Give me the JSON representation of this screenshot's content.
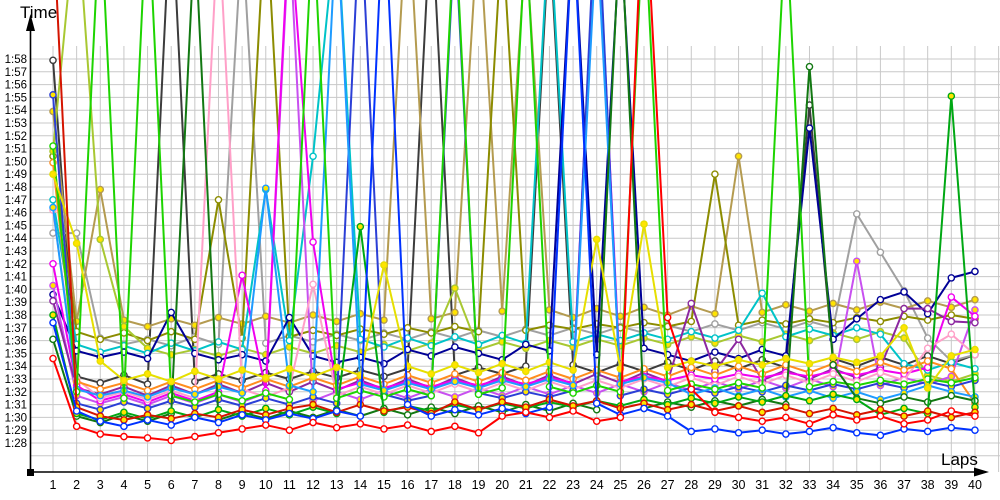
{
  "chart_data": {
    "type": "line",
    "xlabel": "Laps",
    "ylabel": "Time",
    "xlim": [
      1,
      40
    ],
    "ylim_labels": [
      "1:28",
      "1:58"
    ],
    "grid": {
      "show": true,
      "color": "#c8c8c8"
    },
    "axis_color": "#000000",
    "marker_yellow": "#ffe400",
    "x_ticks": [
      1,
      2,
      3,
      4,
      5,
      6,
      7,
      8,
      9,
      10,
      11,
      12,
      13,
      14,
      15,
      16,
      17,
      18,
      19,
      20,
      21,
      22,
      23,
      24,
      25,
      26,
      27,
      28,
      29,
      30,
      31,
      32,
      33,
      34,
      35,
      36,
      37,
      38,
      39,
      40
    ],
    "y_tick_labels": [
      "1:28",
      "1:29",
      "1:30",
      "1:31",
      "1:32",
      "1:33",
      "1:34",
      "1:35",
      "1:36",
      "1:37",
      "1:38",
      "1:39",
      "1:40",
      "1:41",
      "1:42",
      "1:43",
      "1:44",
      "1:45",
      "1:46",
      "1:47",
      "1:48",
      "1:49",
      "1:50",
      "1:51",
      "1:52",
      "1:53",
      "1:54",
      "1:55",
      "1:56",
      "1:57",
      "1:58"
    ],
    "y_base_seconds": 88,
    "note": "values are lap times in seconds (88 = 1:28); values above 120 run off the top of the plot",
    "series": [
      {
        "name": "dark-gray",
        "color": "#3c3c3c",
        "marker": "open",
        "values": [
          117.9,
          93.2,
          92.7,
          93.3,
          92.6,
          131.0,
          92.8,
          93.4,
          92.9,
          93.5,
          93.0,
          93.6,
          93.1,
          93.7,
          93.2,
          93.8,
          130.0,
          93.3,
          93.9,
          93.4,
          94.0,
          128.0,
          94.1,
          93.5,
          94.2,
          93.6,
          94.3,
          93.7,
          94.4,
          93.8,
          94.5,
          93.9,
          114.4,
          94.6,
          94.0,
          94.7,
          94.1,
          94.8,
          94.2,
          94.9
        ]
      },
      {
        "name": "gray",
        "color": "#a0a0a0",
        "marker": "open",
        "values": [
          104.4,
          104.4,
          96.2,
          95.7,
          96.1,
          95.6,
          96.3,
          95.7,
          128.0,
          95.8,
          96.4,
          95.9,
          96.5,
          96.0,
          96.6,
          96.1,
          96.7,
          96.2,
          96.8,
          96.3,
          96.9,
          96.4,
          97.0,
          96.5,
          97.1,
          96.6,
          97.2,
          96.7,
          97.3,
          96.8,
          97.4,
          96.9,
          97.5,
          97.0,
          105.9,
          102.9,
          99.9,
          96.2,
          94.4,
          94.9
        ]
      },
      {
        "name": "khaki",
        "color": "#b49b50",
        "marker": "yellow",
        "values": [
          113.9,
          97.5,
          107.8,
          97.6,
          97.1,
          97.7,
          97.2,
          97.8,
          97.3,
          97.9,
          97.4,
          98.0,
          97.5,
          98.1,
          97.6,
          131.0,
          97.7,
          98.2,
          129.0,
          98.3,
          127.0,
          98.4,
          97.8,
          98.5,
          97.9,
          98.6,
          98.0,
          98.7,
          98.1,
          110.4,
          98.2,
          98.8,
          98.3,
          98.9,
          98.4,
          99.0,
          98.5,
          99.1,
          98.6,
          99.2
        ]
      },
      {
        "name": "olive",
        "color": "#8c8c00",
        "marker": "open",
        "values": [
          110.4,
          96.7,
          96.1,
          96.6,
          96.0,
          96.7,
          96.1,
          107.0,
          96.2,
          130.0,
          96.3,
          96.8,
          96.4,
          96.9,
          96.5,
          97.0,
          96.6,
          97.1,
          96.7,
          128.0,
          96.8,
          97.2,
          96.9,
          97.3,
          97.0,
          97.4,
          97.1,
          97.5,
          109.0,
          97.2,
          97.6,
          97.3,
          97.7,
          97.4,
          97.8,
          97.5,
          97.9,
          97.6,
          98.0,
          97.7
        ]
      },
      {
        "name": "yellow-green",
        "color": "#a8c832",
        "marker": "yellow",
        "values": [
          110.8,
          130.0,
          103.9,
          97.1,
          95.4,
          94.9,
          95.3,
          94.8,
          95.4,
          94.9,
          95.5,
          95.0,
          95.6,
          95.1,
          95.7,
          95.2,
          95.8,
          100.1,
          95.3,
          95.9,
          95.4,
          96.0,
          95.5,
          96.1,
          95.6,
          96.2,
          95.7,
          96.3,
          95.8,
          96.4,
          95.9,
          96.5,
          96.0,
          96.6,
          96.1,
          96.7,
          96.2,
          93.3,
          92.8,
          93.4
        ]
      },
      {
        "name": "cyan",
        "color": "#00c3c8",
        "marker": "open",
        "values": [
          107.0,
          95.7,
          95.1,
          95.6,
          95.0,
          95.8,
          95.2,
          95.9,
          95.3,
          107.8,
          96.0,
          110.4,
          129.0,
          96.1,
          95.5,
          96.2,
          95.6,
          96.3,
          95.7,
          96.4,
          95.8,
          129.0,
          95.9,
          96.5,
          96.0,
          96.6,
          96.1,
          96.7,
          96.2,
          96.8,
          99.7,
          96.3,
          96.9,
          96.4,
          97.0,
          96.5,
          94.2,
          93.7,
          94.3,
          93.8
        ]
      },
      {
        "name": "navy",
        "color": "#000096",
        "marker": "open",
        "values": [
          99.6,
          95.2,
          94.7,
          95.1,
          94.6,
          98.2,
          95.0,
          94.5,
          94.9,
          94.4,
          97.8,
          94.8,
          94.3,
          94.7,
          94.2,
          95.3,
          94.8,
          95.5,
          95.0,
          94.5,
          95.7,
          95.2,
          129.0,
          94.9,
          128.0,
          95.4,
          94.9,
          94.4,
          95.1,
          94.6,
          95.3,
          94.8,
          112.6,
          96.1,
          97.7,
          99.2,
          99.8,
          98.1,
          100.9,
          101.4
        ]
      },
      {
        "name": "violet",
        "color": "#c850f0",
        "marker": "yellow",
        "values": [
          100.3,
          91.7,
          91.1,
          91.6,
          91.0,
          91.7,
          91.1,
          91.8,
          91.2,
          91.9,
          128.0,
          91.3,
          92.0,
          91.4,
          92.1,
          91.5,
          92.2,
          91.6,
          92.3,
          91.7,
          92.4,
          91.8,
          92.5,
          91.9,
          92.6,
          92.0,
          92.7,
          92.1,
          92.8,
          92.2,
          92.9,
          92.3,
          93.0,
          92.4,
          102.2,
          92.5,
          93.1,
          92.6,
          93.2,
          98.4
        ]
      },
      {
        "name": "purple",
        "color": "#8c28a0",
        "marker": "open",
        "values": [
          99.1,
          92.3,
          91.8,
          92.4,
          91.7,
          92.5,
          91.8,
          92.6,
          91.9,
          92.7,
          92.0,
          92.8,
          92.1,
          92.9,
          92.2,
          93.0,
          92.3,
          93.1,
          92.4,
          93.2,
          92.5,
          93.3,
          92.6,
          93.4,
          92.7,
          93.5,
          92.8,
          98.9,
          93.6,
          96.1,
          92.9,
          93.7,
          93.0,
          93.8,
          93.1,
          93.9,
          98.5,
          98.5,
          97.5,
          97.4
        ]
      },
      {
        "name": "magenta",
        "color": "#f000f0",
        "marker": "open",
        "values": [
          102.0,
          92.5,
          91.3,
          91.8,
          91.2,
          91.9,
          91.3,
          92.0,
          101.1,
          92.1,
          129.0,
          103.7,
          92.2,
          92.7,
          92.3,
          92.8,
          92.4,
          92.9,
          92.5,
          93.0,
          92.6,
          93.1,
          92.7,
          131.0,
          92.8,
          93.2,
          92.9,
          93.3,
          93.0,
          93.4,
          93.1,
          93.5,
          93.2,
          93.6,
          93.3,
          93.7,
          93.4,
          93.9,
          99.4,
          97.9
        ]
      },
      {
        "name": "pink",
        "color": "#ffa0c8",
        "marker": "open",
        "values": [
          106.2,
          93.0,
          91.5,
          92.0,
          91.4,
          92.1,
          91.5,
          129.0,
          92.2,
          91.6,
          92.3,
          100.4,
          91.7,
          92.4,
          91.8,
          92.5,
          91.9,
          92.6,
          92.0,
          92.7,
          92.1,
          92.8,
          92.2,
          92.9,
          92.3,
          93.0,
          92.4,
          93.1,
          92.5,
          93.2,
          92.6,
          93.3,
          92.7,
          93.4,
          92.8,
          93.5,
          92.9,
          95.4,
          96.5,
          94.9
        ]
      },
      {
        "name": "orange",
        "color": "#ff8c1e",
        "marker": "open",
        "values": [
          109.9,
          92.8,
          92.2,
          92.7,
          92.1,
          92.8,
          92.2,
          92.9,
          92.3,
          93.0,
          92.4,
          93.1,
          92.5,
          93.2,
          92.6,
          93.3,
          92.7,
          93.4,
          92.8,
          93.5,
          92.9,
          93.6,
          93.0,
          93.7,
          93.1,
          93.8,
          93.2,
          93.9,
          93.3,
          94.0,
          93.4,
          94.1,
          93.5,
          94.2,
          93.6,
          94.3,
          93.7,
          94.4,
          93.8,
          91.1
        ]
      },
      {
        "name": "royal-blue",
        "color": "#2b3fd6",
        "marker": "yellow",
        "values": [
          115.2,
          91.1,
          90.6,
          91.2,
          90.7,
          91.3,
          90.8,
          91.4,
          90.9,
          91.5,
          91.0,
          91.6,
          91.1,
          130.0,
          91.8,
          91.3,
          91.7,
          128.0,
          91.9,
          91.5,
          92.0,
          91.6,
          92.1,
          132.0,
          91.7,
          92.2,
          91.8,
          92.3,
          91.9,
          92.4,
          92.0,
          92.5,
          92.1,
          92.6,
          92.2,
          92.7,
          92.3,
          92.8,
          92.4,
          92.9
        ]
      },
      {
        "name": "sky-blue",
        "color": "#1e9bff",
        "marker": "yellow",
        "values": [
          106.4,
          92.2,
          91.7,
          92.1,
          91.6,
          92.3,
          91.8,
          92.4,
          91.9,
          107.9,
          92.5,
          92.0,
          129.0,
          92.6,
          92.1,
          92.7,
          92.2,
          92.8,
          92.3,
          92.9,
          92.4,
          93.0,
          92.5,
          128.0,
          92.6,
          93.1,
          92.7,
          91.8,
          92.3,
          91.7,
          92.2,
          91.6,
          92.1,
          91.5,
          92.0,
          91.4,
          91.9,
          92.5,
          92.0,
          91.6
        ]
      },
      {
        "name": "lime-green",
        "color": "#1ed400",
        "marker": "open",
        "values": [
          111.2,
          92.0,
          130.0,
          91.5,
          131.0,
          91.7,
          91.2,
          91.8,
          91.3,
          91.9,
          91.4,
          129.0,
          91.5,
          92.1,
          91.6,
          92.2,
          91.7,
          129.0,
          91.8,
          92.3,
          128.0,
          92.4,
          91.9,
          92.5,
          92.0,
          130.0,
          92.1,
          92.6,
          92.2,
          92.7,
          92.3,
          129.0,
          92.4,
          92.8,
          92.5,
          92.9,
          92.6,
          93.0,
          92.7,
          93.1
        ]
      },
      {
        "name": "dark-green",
        "color": "#127812",
        "marker": "open",
        "values": [
          96.1,
          90.1,
          89.6,
          90.2,
          89.7,
          90.3,
          128.0,
          89.8,
          90.4,
          89.9,
          90.5,
          90.0,
          90.6,
          90.1,
          90.7,
          90.2,
          90.8,
          90.3,
          90.9,
          90.4,
          91.0,
          90.5,
          91.1,
          90.6,
          129.0,
          90.7,
          91.2,
          90.8,
          91.3,
          90.9,
          91.4,
          91.0,
          117.4,
          94.1,
          91.5,
          91.1,
          91.6,
          91.2,
          91.7,
          91.3
        ]
      },
      {
        "name": "green",
        "color": "#00a814",
        "marker": "yellow",
        "values": [
          98.0,
          90.3,
          89.8,
          90.4,
          89.9,
          90.5,
          90.0,
          90.6,
          90.1,
          90.7,
          90.2,
          90.8,
          90.3,
          104.9,
          90.4,
          90.9,
          90.5,
          91.0,
          90.6,
          91.1,
          90.7,
          91.2,
          90.8,
          91.3,
          90.9,
          91.4,
          91.0,
          91.5,
          91.1,
          91.6,
          91.2,
          91.7,
          91.3,
          91.8,
          91.4,
          90.2,
          90.7,
          90.3,
          115.1,
          90.8
        ]
      },
      {
        "name": "yellow",
        "color": "#e6df00",
        "marker": "yellow",
        "values": [
          109.0,
          103.6,
          94.4,
          92.9,
          93.4,
          92.8,
          93.6,
          93.0,
          93.7,
          93.1,
          93.8,
          93.2,
          93.9,
          93.3,
          101.9,
          94.0,
          93.4,
          94.1,
          93.5,
          94.2,
          93.6,
          94.3,
          93.7,
          103.9,
          93.8,
          105.1,
          93.9,
          94.4,
          94.0,
          94.5,
          94.1,
          94.6,
          94.2,
          94.7,
          94.3,
          94.8,
          97.0,
          92.3,
          94.8,
          95.3
        ]
      },
      {
        "name": "scarlet",
        "color": "#d41400",
        "marker": "yellow",
        "values": [
          129.0,
          90.8,
          90.1,
          89.8,
          90.2,
          89.9,
          90.3,
          90.0,
          90.6,
          90.2,
          90.7,
          91.0,
          90.4,
          91.0,
          90.5,
          90.8,
          90.3,
          91.2,
          90.6,
          91.2,
          90.8,
          91.4,
          90.9,
          91.3,
          90.7,
          91.1,
          90.6,
          91.0,
          90.5,
          90.9,
          90.4,
          90.8,
          90.3,
          90.7,
          90.2,
          90.6,
          90.1,
          90.5,
          90.0,
          90.4
        ]
      },
      {
        "name": "blue",
        "color": "#0032ff",
        "marker": "open",
        "values": [
          97.4,
          90.5,
          89.7,
          89.3,
          89.8,
          89.4,
          90.0,
          89.6,
          90.2,
          89.8,
          90.3,
          89.9,
          90.5,
          90.1,
          131.0,
          91.0,
          90.1,
          90.6,
          90.2,
          90.7,
          90.3,
          90.8,
          129.0,
          91.1,
          90.2,
          90.7,
          90.1,
          88.9,
          89.1,
          88.8,
          89.0,
          88.7,
          88.9,
          89.2,
          88.8,
          88.6,
          89.1,
          88.9,
          89.2,
          89.0
        ]
      },
      {
        "name": "red",
        "color": "#ff0000",
        "marker": "open",
        "values": [
          94.6,
          89.3,
          88.7,
          88.5,
          88.4,
          88.2,
          88.5,
          88.8,
          89.1,
          89.4,
          89.0,
          89.6,
          89.2,
          89.5,
          89.1,
          89.4,
          88.9,
          89.3,
          88.8,
          90.1,
          90.4,
          90.0,
          90.5,
          89.7,
          90.0,
          133.0,
          97.8,
          92.2,
          90.4,
          90.0,
          89.7,
          90.0,
          89.5,
          90.2,
          89.8,
          90.1,
          89.5,
          89.8,
          90.5,
          90.1
        ]
      }
    ]
  }
}
